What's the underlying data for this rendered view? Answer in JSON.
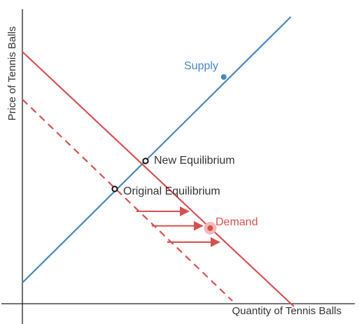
{
  "chart_data": {
    "type": "line",
    "xlabel": "Quantity of Tennis Balls",
    "ylabel": "Price of Tennis Balls",
    "xlim": [
      0,
      10
    ],
    "ylim": [
      0,
      10
    ],
    "grid": false,
    "colors": {
      "supply": "#4a86b8",
      "demand": "#d45151",
      "highlight": "#f3b7b7",
      "axis": "#222222"
    },
    "series": [
      {
        "name": "Supply",
        "style": "solid",
        "points": [
          [
            0,
            0.75
          ],
          [
            8.72,
            10.25
          ]
        ],
        "marker": [
          6.54,
          8.1
        ]
      },
      {
        "name": "Demand",
        "style": "solid",
        "points": [
          [
            0,
            9.0
          ],
          [
            8.82,
            -0.1
          ]
        ],
        "marker": [
          6.1,
          2.7
        ]
      },
      {
        "name": "",
        "style": "dashed",
        "points": [
          [
            0,
            7.3
          ],
          [
            6.82,
            0.1
          ]
        ]
      }
    ],
    "points": [
      {
        "label": "Original Equilibrium",
        "x": 3.0,
        "y": 4.1
      },
      {
        "label": "New Equilibrium",
        "x": 4.0,
        "y": 5.1
      }
    ],
    "shift_arrows": [
      {
        "from": [
          3.7,
          3.3
        ],
        "to": [
          5.4,
          3.3
        ]
      },
      {
        "from": [
          4.2,
          2.78
        ],
        "to": [
          5.85,
          2.78
        ]
      },
      {
        "from": [
          4.7,
          2.2
        ],
        "to": [
          6.4,
          2.2
        ]
      }
    ]
  }
}
